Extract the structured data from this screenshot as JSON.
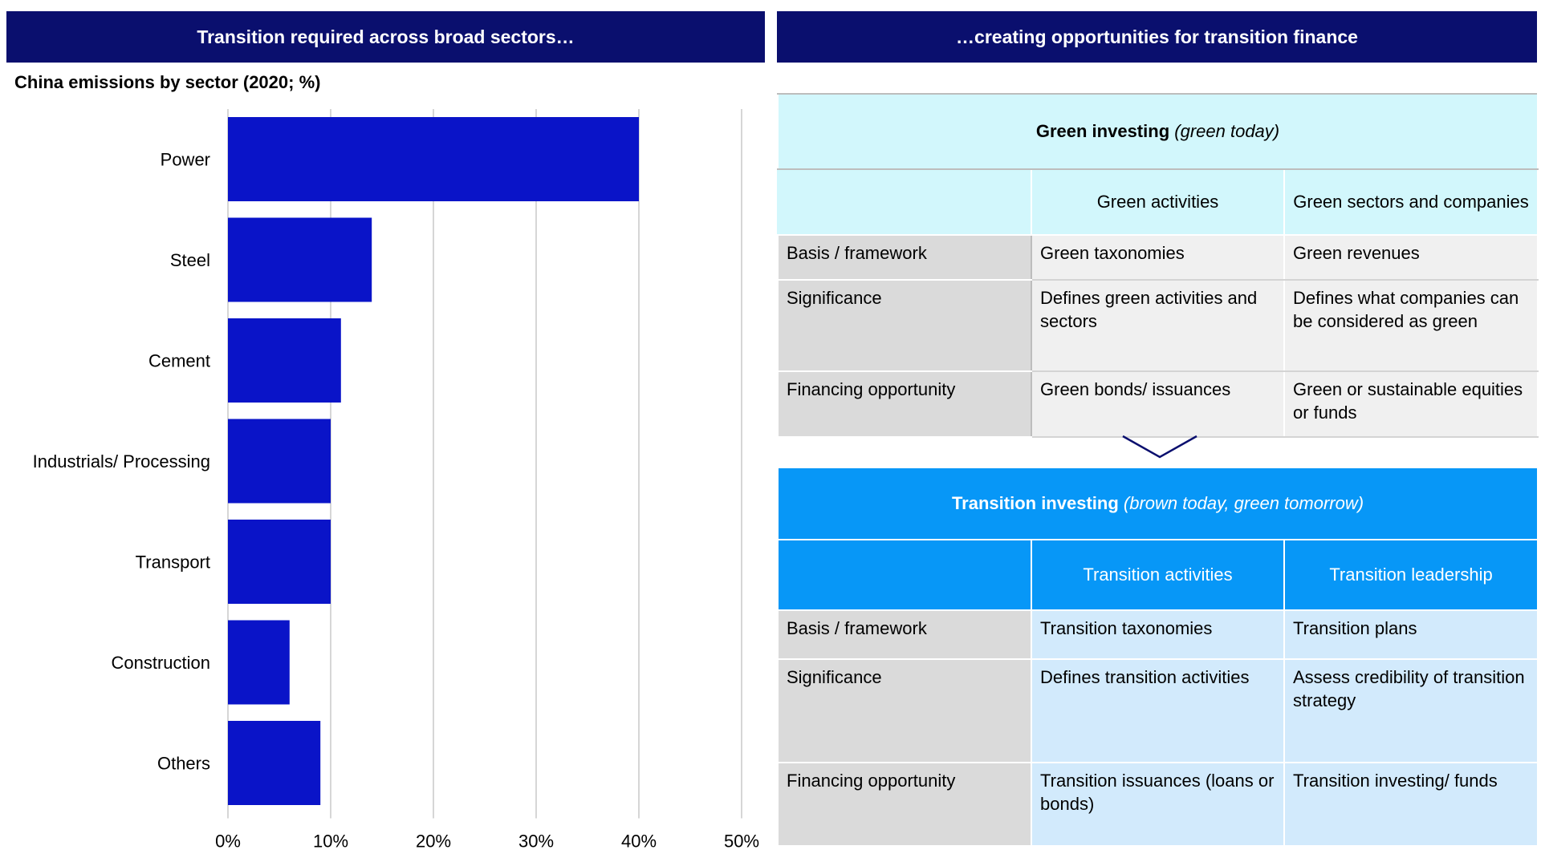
{
  "left_banner": "Transition required across broad sectors…",
  "right_banner": "…creating opportunities for transition finance",
  "chart_data": {
    "type": "bar",
    "orientation": "horizontal",
    "title": "China emissions by sector (2020; %)",
    "categories": [
      "Power",
      "Steel",
      "Cement",
      "Industrials/ Processing",
      "Transport",
      "Construction",
      "Others"
    ],
    "values": [
      40,
      14,
      11,
      10,
      10,
      6,
      9
    ],
    "xlim": [
      0,
      50
    ],
    "ticks": [
      0,
      10,
      20,
      30,
      40,
      50
    ],
    "tick_labels": [
      "0%",
      "10%",
      "20%",
      "30%",
      "40%",
      "50%"
    ],
    "grid": true,
    "bar_color": "#0a14c8",
    "xlabel": "",
    "ylabel": ""
  },
  "green_table": {
    "title_bold": "Green investing",
    "title_italic": "(green today)",
    "col_headers": [
      "",
      "Green activities",
      "Green sectors and companies"
    ],
    "rows": [
      {
        "label": "Basis / framework",
        "c1": "Green taxonomies",
        "c2": "Green revenues"
      },
      {
        "label": "Significance",
        "c1": "Defines green activities and sectors",
        "c2": "Defines what companies can be considered as green"
      },
      {
        "label": "Financing opportunity",
        "c1": "Green bonds/ issuances",
        "c2": "Green or sustainable equities or funds"
      }
    ]
  },
  "transition_table": {
    "title_bold": "Transition investing",
    "title_italic": "(brown today, green tomorrow)",
    "col_headers": [
      "",
      "Transition activities",
      "Transition leadership"
    ],
    "rows": [
      {
        "label": "Basis / framework",
        "c1": "Transition taxonomies",
        "c2": "Transition plans"
      },
      {
        "label": "Significance",
        "c1": "Defines transition activities",
        "c2": "Assess credibility of transition strategy"
      },
      {
        "label": "Financing opportunity",
        "c1": "Transition issuances (loans or bonds)",
        "c2": "Transition investing/ funds"
      }
    ]
  },
  "colors": {
    "banner": "#0a0f6e",
    "bar": "#0a14c8",
    "green_header": "#d2f7fc",
    "transition_header": "#0797f7",
    "transition_cell": "#d2eafc",
    "row_label": "#dadada"
  }
}
